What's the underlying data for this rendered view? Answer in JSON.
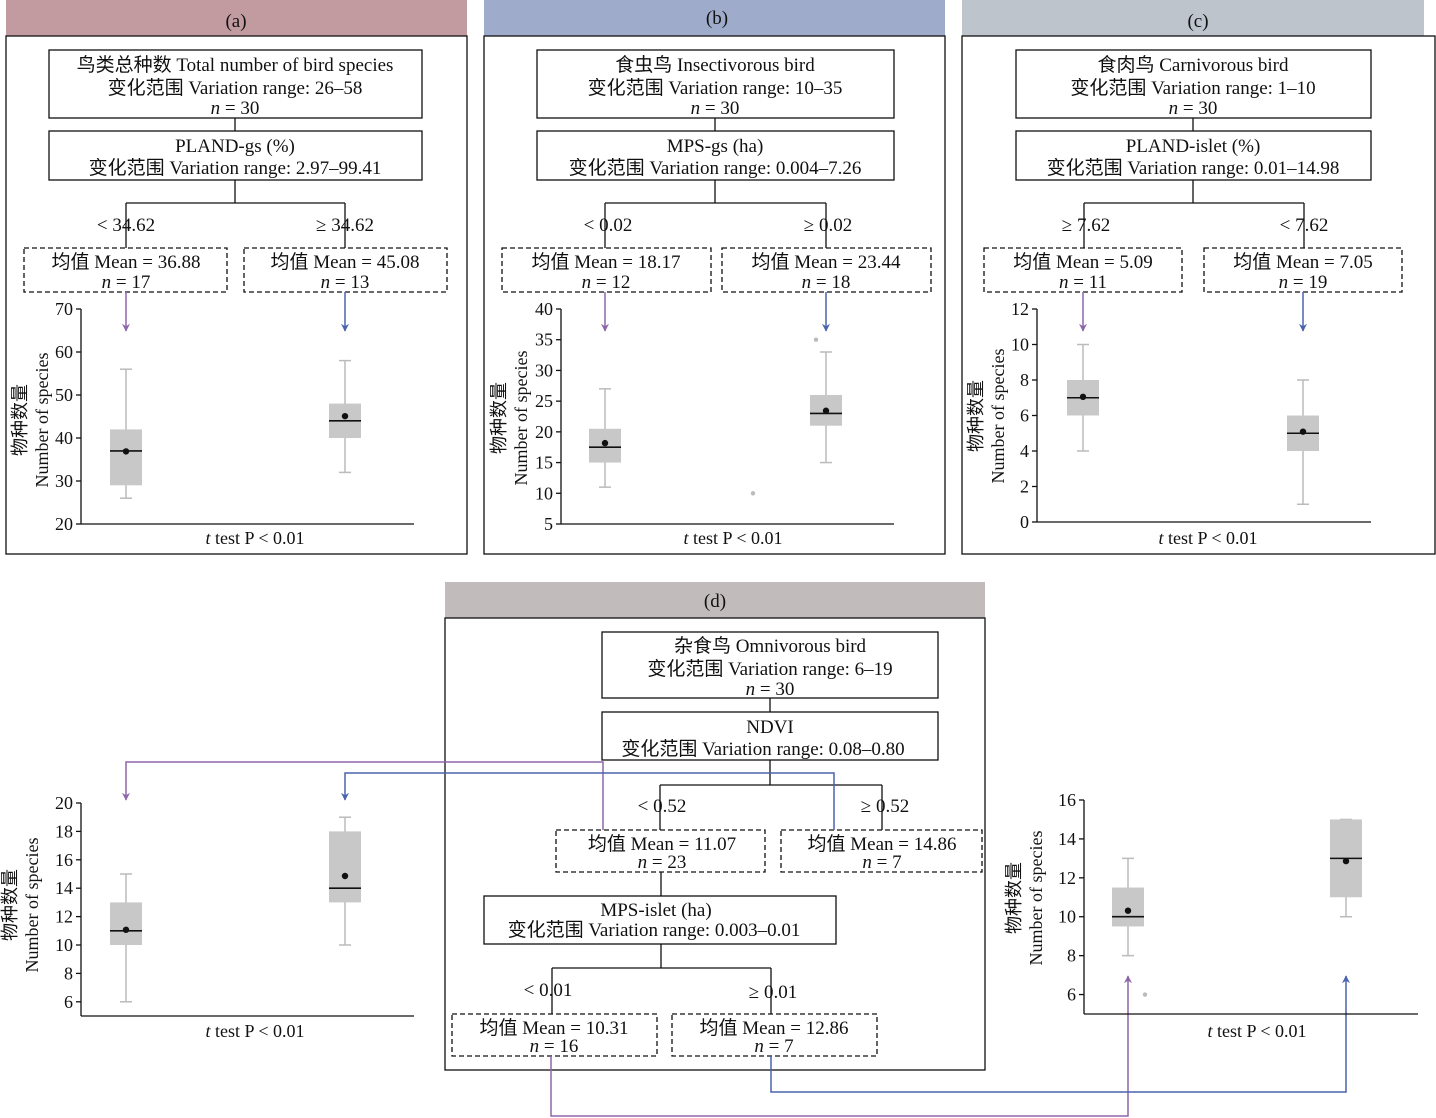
{
  "colors": {
    "header_a": "#c29ba0",
    "header_b": "#9fabcb",
    "header_c": "#bdc4cb",
    "header_d": "#c2bbbc",
    "purple_arrow": "#8e66aa",
    "blue_arrow": "#4a63ad",
    "box_fill": "#c8c8c8",
    "whisker": "#bbbbbb"
  },
  "panels": {
    "a": {
      "label": "(a)",
      "root_line1": "鸟类总种数 Total number of bird species",
      "root_line2": "变化范围 Variation range: 26–58",
      "root_n_italic": "n",
      "root_n_rest": " = 30",
      "split_line1": "PLAND-gs (%)",
      "split_line2": "变化范围 Variation range: 2.97–99.41",
      "left_cond": "< 34.62",
      "right_cond": "≥ 34.62",
      "left_mean": "均值 Mean = 36.88",
      "left_n_italic": "n",
      "left_n_rest": " = 17",
      "right_mean": "均值 Mean = 45.08",
      "right_n_italic": "n",
      "right_n_rest": " = 13",
      "ylabel_cn": "物种数量",
      "ylabel_en": "Number of species",
      "ttest_italic": "t",
      "ttest_rest": " test  P < 0.01"
    },
    "b": {
      "label": "(b)",
      "root_line1": "食虫鸟 Insectivorous bird",
      "root_line2": "变化范围 Variation range: 10–35",
      "root_n_italic": "n",
      "root_n_rest": " = 30",
      "split_line1": "MPS-gs (ha)",
      "split_line2": "变化范围 Variation range: 0.004–7.26",
      "left_cond": "< 0.02",
      "right_cond": "≥ 0.02",
      "left_mean": "均值 Mean = 18.17",
      "left_n_italic": "n",
      "left_n_rest": " = 12",
      "right_mean": "均值 Mean = 23.44",
      "right_n_italic": "n",
      "right_n_rest": " = 18",
      "ylabel_cn": "物种数量",
      "ylabel_en": "Number of species",
      "ttest_italic": "t",
      "ttest_rest": " test  P < 0.01"
    },
    "c": {
      "label": "(c)",
      "root_line1": "食肉鸟 Carnivorous bird",
      "root_line2": "变化范围 Variation range: 1–10",
      "root_n_italic": "n",
      "root_n_rest": " = 30",
      "split_line1": "PLAND-islet (%)",
      "split_line2": "变化范围 Variation range: 0.01–14.98",
      "left_cond": "≥ 7.62",
      "right_cond": "< 7.62",
      "left_mean": "均值 Mean = 5.09",
      "left_n_italic": "n",
      "left_n_rest": " = 11",
      "right_mean": "均值 Mean = 7.05",
      "right_n_italic": "n",
      "right_n_rest": " = 19",
      "ylabel_cn": "物种数量",
      "ylabel_en": "Number of species",
      "ttest_italic": "t",
      "ttest_rest": " test  P < 0.01"
    },
    "d": {
      "label": "(d)",
      "root_line1": "杂食鸟 Omnivorous bird",
      "root_line2": "变化范围 Variation range: 6–19",
      "root_n_italic": "n",
      "root_n_rest": " = 30",
      "split_line1": "NDVI",
      "split_line2": "变化范围 Variation range: 0.08–0.80",
      "left_cond": "< 0.52",
      "right_cond": "≥ 0.52",
      "left_mean": "均值 Mean = 11.07",
      "left_n_italic": "n",
      "left_n_rest": " = 23",
      "right_mean": "均值 Mean = 14.86",
      "right_n_italic": "n",
      "right_n_rest": " = 7",
      "split2_line1": "MPS-islet (ha)",
      "split2_line2": "变化范围 Variation range: 0.003–0.01",
      "left2_cond": "< 0.01",
      "right2_cond": "≥ 0.01",
      "left2_mean": "均值 Mean = 10.31",
      "left2_n_italic": "n",
      "left2_n_rest": " = 16",
      "right2_mean": "均值 Mean = 12.86",
      "right2_n_italic": "n",
      "right2_n_rest": " = 7",
      "ylabel_cn": "物种数量",
      "ylabel_en": "Number of species",
      "ttest_italic": "t",
      "ttest_rest": " test  P < 0.01"
    }
  },
  "chart_data": [
    {
      "id": "a",
      "type": "box",
      "yticks": [
        20,
        30,
        40,
        50,
        60,
        70
      ],
      "ylim": [
        20,
        70
      ],
      "boxes": [
        {
          "whisker_low": 26,
          "q1": 29,
          "median": 37,
          "q3": 42,
          "whisker_high": 56,
          "mean": 36.88,
          "outliers": [],
          "color": "purple_arrow"
        },
        {
          "whisker_low": 32,
          "q1": 40,
          "median": 44,
          "q3": 48,
          "whisker_high": 58,
          "mean": 45.08,
          "outliers": [],
          "color": "blue_arrow"
        }
      ]
    },
    {
      "id": "b",
      "type": "box",
      "yticks": [
        5,
        10,
        15,
        20,
        25,
        30,
        35,
        40
      ],
      "ylim": [
        5,
        40
      ],
      "boxes": [
        {
          "whisker_low": 11,
          "q1": 15,
          "median": 17.5,
          "q3": 20.5,
          "whisker_high": 27,
          "mean": 18.17,
          "outliers": [
            10
          ],
          "color": "purple_arrow"
        },
        {
          "whisker_low": 15,
          "q1": 21,
          "median": 23,
          "q3": 26,
          "whisker_high": 33,
          "mean": 23.44,
          "outliers": [
            35
          ],
          "color": "blue_arrow"
        }
      ]
    },
    {
      "id": "c",
      "type": "box",
      "yticks": [
        0,
        2,
        4,
        6,
        8,
        10,
        12
      ],
      "ylim": [
        0,
        12
      ],
      "boxes": [
        {
          "whisker_low": 4,
          "q1": 6,
          "median": 7,
          "q3": 8,
          "whisker_high": 10,
          "mean": 7.05,
          "outliers": [],
          "color": "purple_arrow"
        },
        {
          "whisker_low": 1,
          "q1": 4,
          "median": 5,
          "q3": 6,
          "whisker_high": 8,
          "mean": 5.09,
          "outliers": [],
          "color": "blue_arrow"
        }
      ]
    },
    {
      "id": "d_left",
      "type": "box",
      "yticks": [
        6,
        8,
        10,
        12,
        14,
        16,
        18,
        20
      ],
      "ylim": [
        5,
        20
      ],
      "boxes": [
        {
          "whisker_low": 6,
          "q1": 10,
          "median": 11,
          "q3": 13,
          "whisker_high": 15,
          "mean": 11.07,
          "outliers": [],
          "color": "purple_arrow"
        },
        {
          "whisker_low": 10,
          "q1": 13,
          "median": 14,
          "q3": 18,
          "whisker_high": 19,
          "mean": 14.86,
          "outliers": [],
          "color": "blue_arrow"
        }
      ]
    },
    {
      "id": "d_right",
      "type": "box",
      "yticks": [
        6,
        8,
        10,
        12,
        14,
        16
      ],
      "ylim": [
        5,
        16
      ],
      "boxes": [
        {
          "whisker_low": 8,
          "q1": 9.5,
          "median": 10,
          "q3": 11.5,
          "whisker_high": 13,
          "mean": 10.31,
          "outliers": [
            6
          ],
          "color": "purple_arrow"
        },
        {
          "whisker_low": 10,
          "q1": 11,
          "median": 13,
          "q3": 15,
          "whisker_high": 15,
          "mean": 12.86,
          "outliers": [],
          "color": "blue_arrow"
        }
      ]
    }
  ]
}
